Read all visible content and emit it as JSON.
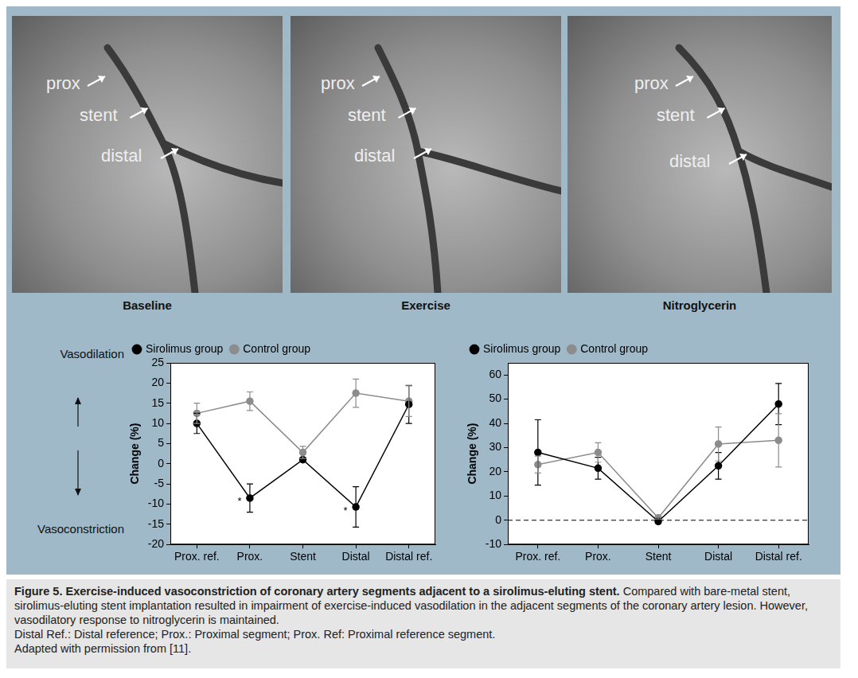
{
  "image_panels": [
    {
      "title": "Baseline",
      "labels": [
        "prox",
        "stent",
        "distal"
      ]
    },
    {
      "title": "Exercise",
      "labels": [
        "prox",
        "stent",
        "distal"
      ]
    },
    {
      "title": "Nitroglycerin",
      "labels": [
        "prox",
        "stent",
        "distal"
      ]
    }
  ],
  "chart_data": [
    {
      "type": "line",
      "categories": [
        "Prox. ref.",
        "Prox.",
        "Stent",
        "Distal",
        "Distal ref."
      ],
      "y_label": "Change (%)",
      "side_labels": {
        "top": "Vasodilation",
        "bottom": "Vasoconstriction"
      },
      "ylim": [
        -20,
        25
      ],
      "yticks": [
        -20,
        -15,
        -10,
        -5,
        0,
        5,
        10,
        15,
        20,
        25
      ],
      "grid": false,
      "legend": "upper left",
      "marker": "circle",
      "series": [
        {
          "name": "Sirolimus group",
          "color": "#000000",
          "values": [
            10,
            -8.5,
            1,
            -10.7,
            14.7
          ],
          "errors": [
            2.5,
            3.5,
            0.5,
            5,
            4.7
          ]
        },
        {
          "name": "Control group",
          "color": "#8c8c8c",
          "values": [
            12.5,
            15.5,
            2.8,
            17.5,
            15.5
          ],
          "errors": [
            2.5,
            2.3,
            1.5,
            3.5,
            3.8
          ]
        }
      ],
      "annotations": [
        {
          "text": "*",
          "category": "Prox.",
          "y": -9.4
        },
        {
          "text": "*",
          "category": "Distal",
          "y": -11.7
        }
      ]
    },
    {
      "type": "line",
      "categories": [
        "Prox. ref.",
        "Prox.",
        "Stent",
        "Distal",
        "Distal ref."
      ],
      "y_label": "Change (%)",
      "ylim": [
        -10,
        65
      ],
      "yticks": [
        -10,
        0,
        10,
        20,
        30,
        40,
        50,
        60
      ],
      "grid": false,
      "legend": "upper left",
      "marker": "circle",
      "reference_lines": [
        {
          "y": 0,
          "line_style": "dashed"
        }
      ],
      "series": [
        {
          "name": "Sirolimus group",
          "color": "#000000",
          "values": [
            28,
            21.5,
            -0.5,
            22.5,
            48
          ],
          "errors": [
            13.5,
            4.5,
            0.5,
            5.5,
            8.5
          ]
        },
        {
          "name": "Control group",
          "color": "#8c8c8c",
          "values": [
            23,
            28,
            1,
            31.5,
            33
          ],
          "errors": [
            3.5,
            4,
            0.5,
            7,
            11
          ]
        }
      ]
    }
  ],
  "caption": {
    "title": "Figure 5. Exercise-induced vasoconstriction of coronary artery segments adjacent to a sirolimus-eluting stent.",
    "text": "Compared with bare-metal stent, sirolimus-eluting stent implantation resulted in impairment of exercise-induced vasodilation in the adjacent segments of the coronary artery lesion. However, vasodilatory response to nitroglycerin is maintained.",
    "abbreviations": "Distal Ref.: Distal reference; Prox.: Proximal segment; Prox. Ref: Proximal reference segment.",
    "source": "Adapted with permission from [11]."
  }
}
